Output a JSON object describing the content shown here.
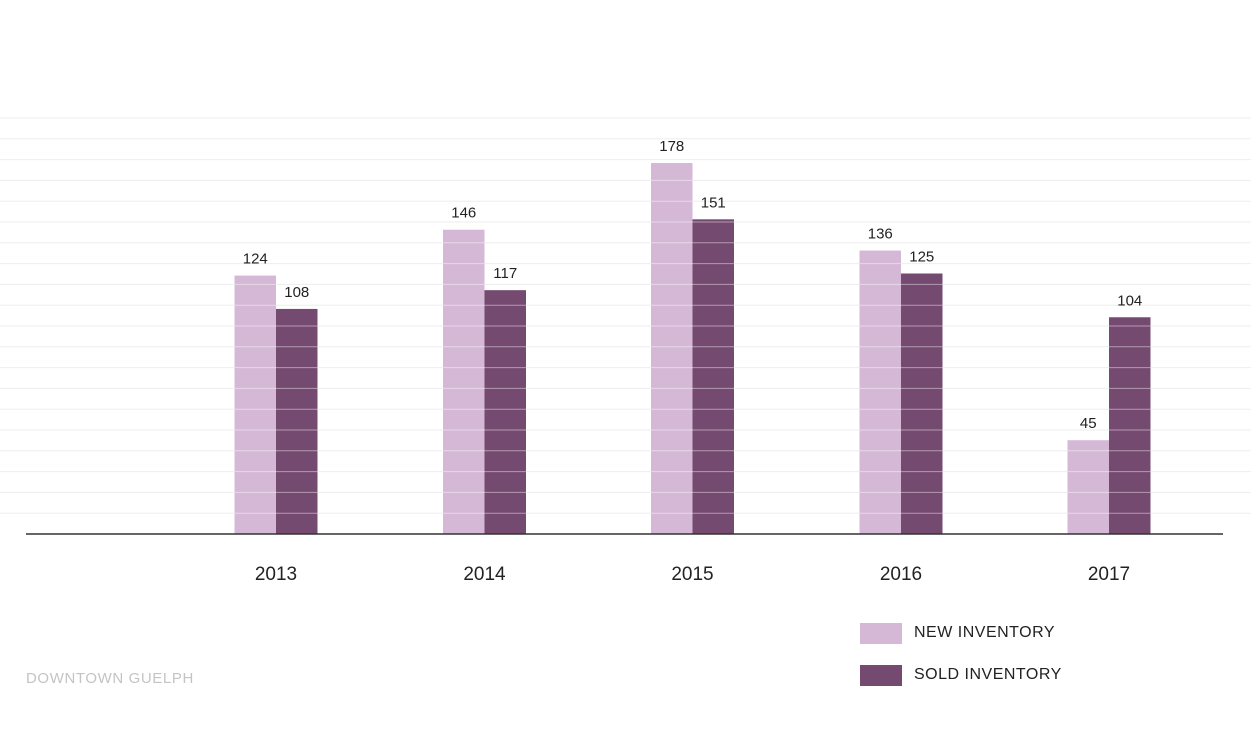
{
  "chart_data": {
    "type": "bar",
    "title": "",
    "xlabel": "",
    "ylabel": "",
    "categories": [
      "2013",
      "2014",
      "2015",
      "2016",
      "2017"
    ],
    "series": [
      {
        "name": "NEW INVENTORY",
        "color": "#d4b8d6",
        "values": [
          124,
          146,
          178,
          136,
          45
        ]
      },
      {
        "name": "SOLD INVENTORY",
        "color": "#754a70",
        "values": [
          108,
          117,
          151,
          125,
          104
        ]
      }
    ],
    "ylim": [
      0,
      200
    ],
    "grid": true,
    "legend_position": "bottom-right"
  },
  "source_text": "DOWNTOWN GUELPH",
  "colors": {
    "axis": "#333333",
    "grid": "#eeeeee",
    "bar_stripe": "#ffffff"
  }
}
